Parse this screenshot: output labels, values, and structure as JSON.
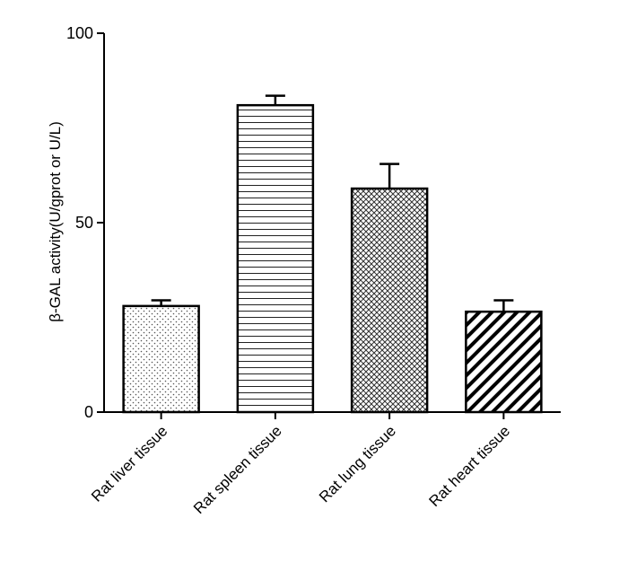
{
  "chart_data": {
    "type": "bar",
    "title": "",
    "ylabel": "β-GAL activity(U/gprot or U/L)",
    "xlabel": "",
    "ylim": [
      0,
      100
    ],
    "yticks": [
      "0",
      "50",
      "100"
    ],
    "ytick_values": [
      0,
      50,
      100
    ],
    "categories": [
      "Rat liver tissue",
      "Rat spleen tissue",
      "Rat lung tissue",
      "Rat heart tissue"
    ],
    "values": [
      28,
      81,
      59,
      26.5
    ],
    "errors": [
      1.5,
      2.5,
      6.5,
      3
    ],
    "patterns": [
      "dots",
      "horizontal-lines",
      "crosshatch",
      "diagonal-stripes"
    ],
    "grid": false,
    "legend": "none"
  }
}
